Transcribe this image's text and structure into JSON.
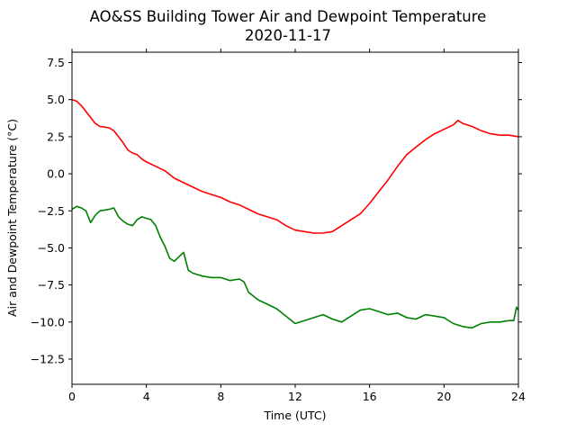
{
  "chart_data": {
    "type": "line",
    "title": "AO&SS Building Tower Air and Dewpoint Temperature",
    "subtitle": "2020-11-17",
    "xlabel": "Time (UTC)",
    "ylabel": "Air and Dewpoint Temperature (°C)",
    "xlim": [
      0,
      24
    ],
    "ylim": [
      -14.2,
      8.2
    ],
    "xticks": [
      0,
      4,
      8,
      12,
      16,
      20,
      24
    ],
    "yticks": [
      -12.5,
      -10.0,
      -7.5,
      -5.0,
      -2.5,
      0.0,
      2.5,
      5.0,
      7.5
    ],
    "ytick_labels": [
      "−12.5",
      "−10.0",
      "−7.5",
      "−5.0",
      "−2.5",
      "0.0",
      "2.5",
      "5.0",
      "7.5"
    ],
    "grid": false,
    "series": [
      {
        "color": "#ff0000",
        "x": [
          0,
          0.25,
          0.5,
          0.75,
          1.0,
          1.25,
          1.5,
          2.0,
          2.25,
          2.5,
          2.75,
          3.0,
          3.25,
          3.5,
          3.75,
          4.0,
          4.5,
          5.0,
          5.5,
          6.0,
          6.5,
          7.0,
          7.5,
          8.0,
          8.5,
          9.0,
          9.5,
          10.0,
          10.5,
          11.0,
          11.5,
          12.0,
          12.5,
          13.0,
          13.5,
          14.0,
          14.5,
          15.0,
          15.5,
          16.0,
          16.5,
          17.0,
          17.5,
          18.0,
          18.5,
          19.0,
          19.5,
          20.0,
          20.5,
          20.75,
          21.0,
          21.5,
          22.0,
          22.5,
          23.0,
          23.5,
          24.0
        ],
        "values": [
          5.0,
          4.9,
          4.6,
          4.2,
          3.8,
          3.4,
          3.2,
          3.1,
          2.9,
          2.5,
          2.1,
          1.6,
          1.4,
          1.3,
          1.0,
          0.8,
          0.5,
          0.2,
          -0.3,
          -0.6,
          -0.9,
          -1.2,
          -1.4,
          -1.6,
          -1.9,
          -2.1,
          -2.4,
          -2.7,
          -2.9,
          -3.1,
          -3.5,
          -3.8,
          -3.9,
          -4.0,
          -4.0,
          -3.9,
          -3.5,
          -3.1,
          -2.7,
          -2.0,
          -1.2,
          -0.4,
          0.5,
          1.3,
          1.8,
          2.3,
          2.7,
          3.0,
          3.3,
          3.6,
          3.4,
          3.2,
          2.9,
          2.7,
          2.6,
          2.6,
          2.5
        ]
      },
      {
        "color": "#008000",
        "x": [
          0,
          0.25,
          0.5,
          0.75,
          1.0,
          1.25,
          1.5,
          2.0,
          2.25,
          2.5,
          2.75,
          3.0,
          3.25,
          3.5,
          3.75,
          4.0,
          4.25,
          4.5,
          4.75,
          5.0,
          5.25,
          5.5,
          5.75,
          6.0,
          6.25,
          6.5,
          6.75,
          7.0,
          7.5,
          8.0,
          8.5,
          9.0,
          9.25,
          9.5,
          10.0,
          10.5,
          11.0,
          11.5,
          12.0,
          12.5,
          13.0,
          13.5,
          14.0,
          14.5,
          15.0,
          15.5,
          16.0,
          16.5,
          17.0,
          17.5,
          18.0,
          18.5,
          19.0,
          19.5,
          20.0,
          20.5,
          21.0,
          21.5,
          22.0,
          22.5,
          23.0,
          23.5,
          23.75,
          23.9,
          24.0
        ],
        "values": [
          -2.4,
          -2.2,
          -2.3,
          -2.5,
          -3.3,
          -2.8,
          -2.5,
          -2.4,
          -2.3,
          -2.9,
          -3.2,
          -3.4,
          -3.5,
          -3.1,
          -2.9,
          -3.0,
          -3.1,
          -3.5,
          -4.3,
          -4.9,
          -5.7,
          -5.9,
          -5.6,
          -5.3,
          -6.5,
          -6.7,
          -6.8,
          -6.9,
          -7.0,
          -7.0,
          -7.2,
          -7.1,
          -7.3,
          -8.0,
          -8.5,
          -8.8,
          -9.1,
          -9.6,
          -10.1,
          -9.9,
          -9.7,
          -9.5,
          -9.8,
          -10.0,
          -9.6,
          -9.2,
          -9.1,
          -9.3,
          -9.5,
          -9.4,
          -9.7,
          -9.8,
          -9.5,
          -9.6,
          -9.7,
          -10.1,
          -10.3,
          -10.4,
          -10.1,
          -10.0,
          -10.0,
          -9.9,
          -9.9,
          -9.0,
          -9.2
        ]
      }
    ]
  }
}
